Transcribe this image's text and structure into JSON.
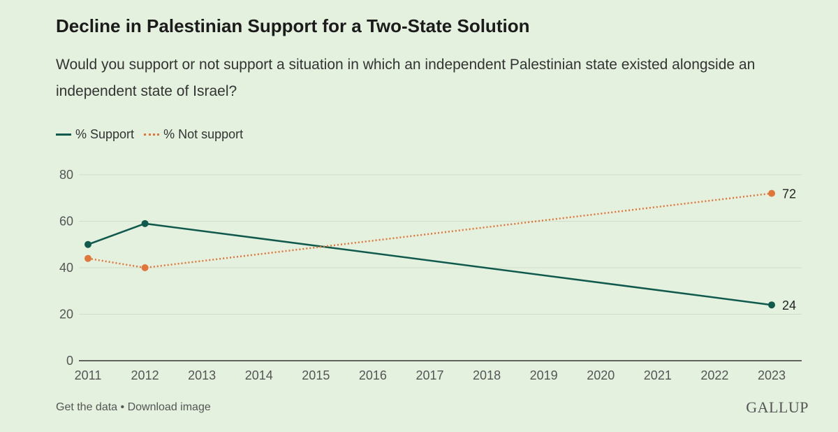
{
  "chart_data": {
    "type": "line",
    "title": "Decline in Palestinian Support for a Two-State Solution",
    "subtitle": "Would you support or not support a situation in which an independent Palestinian state existed alongside an independent state of Israel?",
    "x": [
      2011,
      2012,
      2013,
      2014,
      2015,
      2016,
      2017,
      2018,
      2019,
      2020,
      2021,
      2022,
      2023
    ],
    "xlim": [
      2011,
      2023
    ],
    "ylim": [
      0,
      80
    ],
    "yticks": [
      0,
      20,
      40,
      60,
      80
    ],
    "grid": true,
    "legend_position": "top-left",
    "series": [
      {
        "name": "% Support",
        "color": "#0f5a4d",
        "style": "solid",
        "points": [
          {
            "x": 2011,
            "y": 50
          },
          {
            "x": 2012,
            "y": 59
          },
          {
            "x": 2023,
            "y": 24
          }
        ],
        "end_label": "24"
      },
      {
        "name": "% Not support",
        "color": "#e0763a",
        "style": "dotted",
        "points": [
          {
            "x": 2011,
            "y": 44
          },
          {
            "x": 2012,
            "y": 40
          },
          {
            "x": 2023,
            "y": 72
          }
        ],
        "end_label": "72"
      }
    ]
  },
  "footer": {
    "get_data": "Get the data",
    "separator": " • ",
    "download": "Download image",
    "logo": "GALLUP"
  }
}
